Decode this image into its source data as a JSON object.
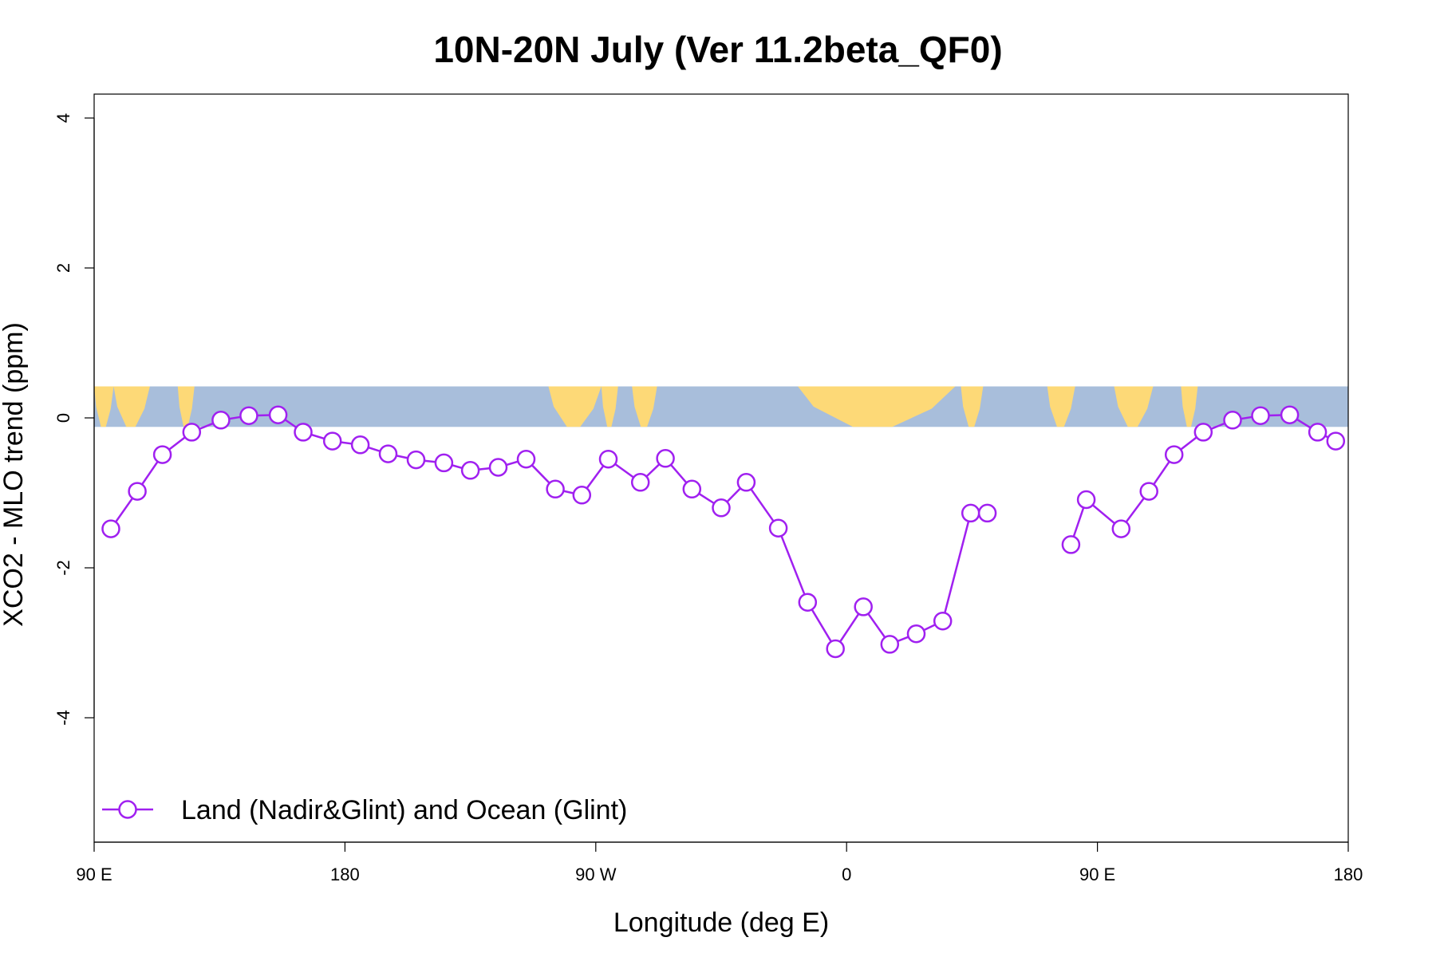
{
  "chart_data": {
    "type": "line",
    "title": "10N-20N July (Ver 11.2beta_QF0)",
    "xlabel": "Longitude (deg E)",
    "ylabel": "XCO2 - MLO trend (ppm)",
    "xlim": [
      90,
      540
    ],
    "ylim": [
      -5.6,
      4.3
    ],
    "x_ticks": [
      {
        "value": 90,
        "label": "90 E"
      },
      {
        "value": 180,
        "label": "180"
      },
      {
        "value": 270,
        "label": "90 W"
      },
      {
        "value": 360,
        "label": "0"
      },
      {
        "value": 450,
        "label": "90 E"
      },
      {
        "value": 540,
        "label": "180"
      }
    ],
    "y_ticks": [
      {
        "value": 4,
        "label": "4"
      },
      {
        "value": 2,
        "label": "2"
      },
      {
        "value": 0,
        "label": "0"
      },
      {
        "value": -2,
        "label": "-2"
      },
      {
        "value": -4,
        "label": "-4"
      }
    ],
    "grid": false,
    "map_strip": {
      "ymin": -0.12,
      "ymax": 0.42,
      "ocean_color": "#a8bedb",
      "land_color": "#fdd977"
    },
    "legend": {
      "position": "bottom-left"
    },
    "series": [
      {
        "name": "Land (Nadir&Glint) and Ocean (Glint)",
        "color": "#a020f0",
        "segments": [
          [
            [
              96,
              -1.48
            ],
            [
              105.5,
              -0.98
            ],
            [
              114.5,
              -0.49
            ],
            [
              125,
              -0.19
            ],
            [
              135.5,
              -0.03
            ],
            [
              145.5,
              0.03
            ],
            [
              156,
              0.04
            ],
            [
              165,
              -0.19
            ],
            [
              175.5,
              -0.31
            ],
            [
              185.5,
              -0.36
            ],
            [
              195.5,
              -0.48
            ],
            [
              205.5,
              -0.56
            ],
            [
              215.5,
              -0.6
            ],
            [
              225,
              -0.7
            ],
            [
              235,
              -0.66
            ],
            [
              245,
              -0.55
            ],
            [
              255.5,
              -0.95
            ],
            [
              265,
              -1.03
            ],
            [
              274.5,
              -0.55
            ],
            [
              286,
              -0.86
            ],
            [
              295,
              -0.54
            ],
            [
              304.5,
              -0.95
            ],
            [
              315,
              -1.2
            ],
            [
              324,
              -0.86
            ],
            [
              335.5,
              -1.47
            ],
            [
              346,
              -2.46
            ],
            [
              356,
              -3.08
            ],
            [
              366,
              -2.52
            ],
            [
              375.5,
              -3.02
            ],
            [
              385,
              -2.88
            ],
            [
              394.5,
              -2.71
            ],
            [
              404.5,
              -1.27
            ],
            [
              410.5,
              -1.27
            ]
          ],
          [
            [
              440.5,
              -1.69
            ],
            [
              446,
              -1.09
            ],
            [
              458.5,
              -1.48
            ],
            [
              468.5,
              -0.98
            ],
            [
              477.5,
              -0.49
            ],
            [
              488,
              -0.19
            ],
            [
              498.5,
              -0.03
            ],
            [
              508.5,
              0.03
            ],
            [
              519,
              0.04
            ],
            [
              529,
              -0.19
            ],
            [
              535.5,
              -0.31
            ]
          ]
        ]
      }
    ]
  }
}
